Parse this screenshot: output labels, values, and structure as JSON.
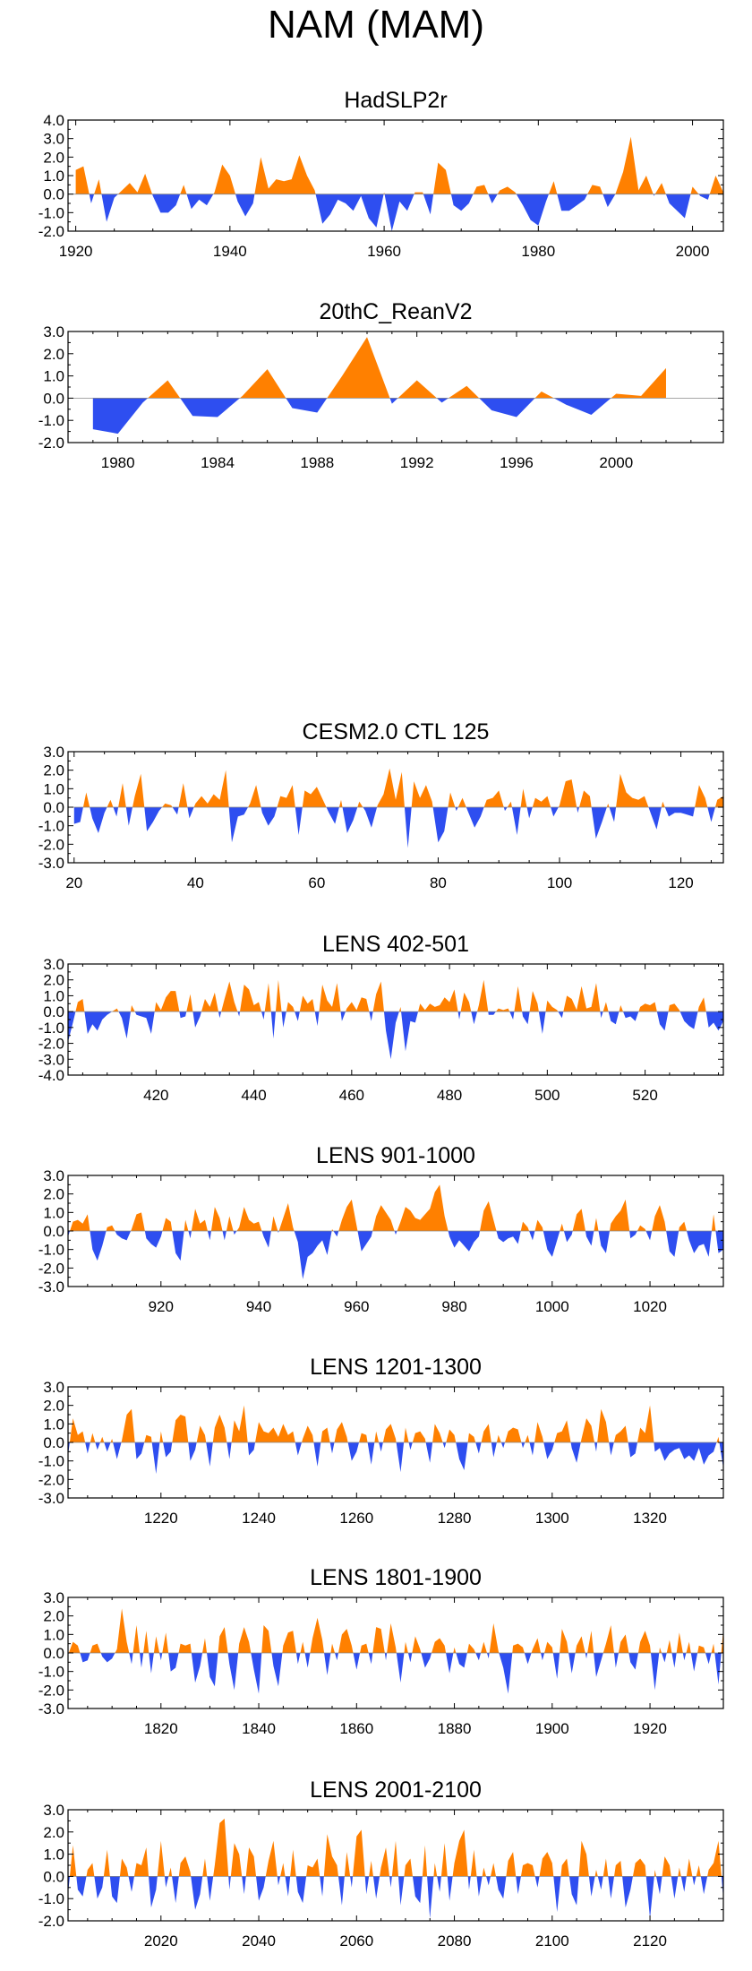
{
  "figure_title": "NAM (MAM)",
  "colors": {
    "positive": "#ff8000",
    "negative": "#2e4ef0",
    "axis": "#000000"
  },
  "chart_data": [
    {
      "type": "area",
      "title": "HadSLP2r",
      "x_start": 1920,
      "x_end": 2004,
      "xlim": [
        1919,
        2004
      ],
      "xticks": [
        1920,
        1940,
        1960,
        1980,
        2000
      ],
      "ylim": [
        -2.0,
        4.0
      ],
      "yticks": [
        "4.0",
        "3.0",
        "2.0",
        "1.0",
        "0.0",
        "-1.0",
        "-2.0"
      ],
      "values": [
        1.3,
        1.5,
        -0.5,
        0.8,
        -1.5,
        -0.2,
        0.2,
        0.6,
        0.1,
        1.1,
        -0.1,
        -1.0,
        -1.0,
        -0.6,
        0.5,
        -0.8,
        -0.3,
        -0.6,
        0.1,
        1.6,
        1.0,
        -0.4,
        -1.2,
        -0.5,
        2.0,
        0.3,
        0.8,
        0.7,
        0.8,
        2.1,
        1.0,
        0.2,
        -1.6,
        -1.1,
        -0.3,
        -0.5,
        -0.9,
        -0.1,
        -1.3,
        -1.8,
        0.1,
        -2.0,
        -0.4,
        -0.9,
        0.1,
        0.1,
        -1.1,
        1.7,
        1.3,
        -0.6,
        -0.9,
        -0.5,
        0.4,
        0.5,
        -0.5,
        0.2,
        0.4,
        0.1,
        -0.6,
        -1.4,
        -1.7,
        -0.4,
        0.7,
        -0.9,
        -0.9,
        -0.6,
        -0.3,
        0.5,
        0.4,
        -0.7,
        0.0,
        1.2,
        3.1,
        0.2,
        1.0,
        -0.1,
        0.6,
        -0.5,
        -0.9,
        -1.3,
        0.4,
        -0.1,
        -0.3,
        1.0,
        0.1
      ]
    },
    {
      "type": "area",
      "title": "20thC_ReanV2",
      "x_start": 1979,
      "x_end": 2002,
      "xlim": [
        1978,
        2004.3
      ],
      "xticks": [
        1980,
        1984,
        1988,
        1992,
        1996,
        2000
      ],
      "ylim": [
        -2.0,
        3.0
      ],
      "yticks": [
        "3.0",
        "2.0",
        "1.0",
        "0.0",
        "-1.0",
        "-2.0"
      ],
      "values": [
        -1.4,
        -1.6,
        -0.2,
        0.8,
        -0.8,
        -0.85,
        0.1,
        1.3,
        -0.45,
        -0.65,
        1.0,
        2.75,
        -0.25,
        0.8,
        -0.2,
        0.55,
        -0.55,
        -0.85,
        0.3,
        -0.3,
        -0.75,
        0.2,
        0.1,
        1.35
      ]
    },
    {
      "type": "area",
      "title": "CESM2.0 CTL 125",
      "x_start": 20,
      "x_end": 127,
      "xlim": [
        19,
        127
      ],
      "xticks": [
        20,
        40,
        60,
        80,
        100,
        120
      ],
      "ylim": [
        -3.0,
        3.0
      ],
      "yticks": [
        "3.0",
        "2.0",
        "1.0",
        "0.0",
        "-1.0",
        "-2.0",
        "-3.0"
      ],
      "values": [
        -0.9,
        -0.8,
        0.8,
        -0.6,
        -1.4,
        -0.3,
        0.4,
        -0.5,
        1.3,
        -1.0,
        0.6,
        1.8,
        -1.3,
        -0.8,
        -0.2,
        0.2,
        0.1,
        -0.4,
        1.3,
        -0.6,
        0.2,
        0.6,
        0.2,
        0.7,
        0.4,
        2.0,
        -1.9,
        -0.5,
        -0.4,
        0.2,
        1.2,
        -0.3,
        -1.0,
        -0.5,
        0.6,
        0.5,
        1.2,
        -1.5,
        0.9,
        0.7,
        1.1,
        0.4,
        -0.3,
        -0.9,
        0.4,
        -1.4,
        -0.7,
        0.3,
        -0.2,
        -1.1,
        0.1,
        0.7,
        2.1,
        0.4,
        1.9,
        -2.2,
        1.4,
        0.5,
        1.2,
        0.3,
        -1.9,
        -1.3,
        0.8,
        -0.2,
        0.5,
        -0.3,
        -1.1,
        -0.5,
        0.4,
        0.5,
        0.9,
        -0.2,
        0.3,
        -1.5,
        1.0,
        -0.6,
        0.5,
        0.3,
        0.6,
        -0.5,
        0.1,
        1.4,
        1.5,
        -0.3,
        0.9,
        0.6,
        -1.7,
        -0.8,
        0.2,
        -0.8,
        1.8,
        0.8,
        0.5,
        0.4,
        0.6,
        -0.3,
        -1.2,
        0.3,
        -0.5,
        -0.3,
        -0.3,
        -0.4,
        -0.5,
        1.2,
        0.5,
        -0.8,
        0.4,
        0.6,
        -0.9
      ]
    },
    {
      "type": "area",
      "title": "LENS 402-501",
      "x_start": 402,
      "x_end": 536,
      "xlim": [
        402,
        536
      ],
      "xticks": [
        420,
        440,
        460,
        480,
        500,
        520
      ],
      "ylim": [
        -4.0,
        3.0
      ],
      "yticks": [
        "3.0",
        "2.0",
        "1.0",
        "0.0",
        "-1.0",
        "-2.0",
        "-3.0",
        "-4.0"
      ],
      "values": [
        -1.9,
        -0.7,
        0.6,
        0.8,
        -1.4,
        -0.8,
        -1.2,
        -0.5,
        -0.2,
        0.0,
        0.2,
        -0.4,
        -1.7,
        0.4,
        -0.2,
        -0.3,
        -0.4,
        -1.4,
        0.6,
        0.1,
        0.9,
        1.3,
        1.3,
        -0.4,
        -0.3,
        1.1,
        -1.0,
        -0.3,
        0.8,
        0.3,
        1.2,
        -0.4,
        0.8,
        1.9,
        0.6,
        -0.3,
        1.7,
        1.4,
        0.4,
        0.6,
        -0.5,
        1.8,
        -1.7,
        2.0,
        -1.0,
        0.6,
        0.3,
        -0.6,
        1.0,
        0.5,
        0.8,
        -0.9,
        1.7,
        0.7,
        0.3,
        1.8,
        -0.6,
        0.2,
        0.6,
        0.1,
        0.9,
        0.8,
        -0.6,
        1.1,
        1.9,
        -1.2,
        -3.0,
        -0.7,
        0.3,
        -2.5,
        -0.6,
        -0.7,
        0.5,
        0.1,
        0.5,
        0.3,
        0.4,
        0.9,
        0.6,
        1.4,
        -0.5,
        1.2,
        0.6,
        -0.8,
        0.4,
        2.0,
        -0.2,
        -0.2,
        0.2,
        0.1,
        0.2,
        -0.5,
        1.6,
        -0.3,
        -0.8,
        1.3,
        0.5,
        -1.4,
        0.7,
        0.3,
        0.1,
        -0.4,
        1.0,
        0.8,
        0.1,
        1.6,
        0.2,
        0.3,
        1.8,
        -0.4,
        0.6,
        -0.6,
        -0.8,
        0.4,
        -0.4,
        -0.3,
        -0.6,
        0.3,
        0.5,
        0.4,
        0.6,
        -0.8,
        -1.2,
        0.4,
        0.5,
        0.1,
        -0.6,
        -0.9,
        -1.1,
        0.3,
        0.9,
        -1.0,
        -0.7,
        -1.2,
        -0.6
      ]
    },
    {
      "type": "area",
      "title": "LENS 901-1000",
      "x_start": 901,
      "x_end": 1035,
      "xlim": [
        901,
        1035
      ],
      "xticks": [
        920,
        940,
        960,
        980,
        1000,
        1020
      ],
      "ylim": [
        -3.0,
        3.0
      ],
      "yticks": [
        "3.0",
        "2.0",
        "1.0",
        "0.0",
        "-1.0",
        "-2.0",
        "-3.0"
      ],
      "values": [
        -0.3,
        0.5,
        0.6,
        0.4,
        0.9,
        -1.0,
        -1.6,
        -0.8,
        0.2,
        0.3,
        -0.2,
        -0.4,
        -0.5,
        0.1,
        0.9,
        1.0,
        -0.4,
        -0.7,
        -0.9,
        -0.3,
        0.7,
        0.5,
        -1.2,
        -1.6,
        0.6,
        -0.4,
        1.2,
        0.4,
        0.6,
        -0.5,
        1.3,
        0.7,
        -0.5,
        0.8,
        -0.2,
        0.2,
        1.3,
        0.6,
        0.4,
        0.5,
        -0.3,
        -0.9,
        0.8,
        -0.1,
        0.7,
        1.5,
        0.2,
        -0.6,
        -2.6,
        -1.4,
        -1.2,
        -0.8,
        -0.5,
        -1.3,
        0.1,
        -0.3,
        0.6,
        1.3,
        1.7,
        0.3,
        -1.1,
        -0.7,
        -0.3,
        0.8,
        1.4,
        1.0,
        0.6,
        -0.2,
        0.5,
        1.3,
        1.1,
        0.7,
        0.6,
        0.9,
        1.2,
        2.1,
        2.5,
        0.8,
        -0.3,
        -0.9,
        -0.5,
        -0.8,
        -1.1,
        -0.6,
        -0.3,
        1.1,
        1.6,
        0.6,
        -0.4,
        -0.6,
        -0.4,
        -0.3,
        -0.7,
        0.5,
        0.2,
        -0.5,
        0.6,
        0.2,
        -1.0,
        -1.4,
        -0.5,
        0.4,
        -0.6,
        -0.2,
        0.9,
        1.2,
        -0.3,
        -0.8,
        0.7,
        -0.8,
        -1.2,
        0.4,
        0.8,
        1.1,
        1.7,
        -0.4,
        -0.2,
        0.3,
        0.1,
        -0.5,
        0.8,
        1.4,
        0.5,
        -1.1,
        -1.4,
        0.2,
        0.5,
        -0.5,
        -1.2,
        -0.8,
        -0.7,
        -1.4,
        0.9,
        -1.2,
        -1.0
      ]
    },
    {
      "type": "area",
      "title": "LENS 1201-1300",
      "x_start": 1201,
      "x_end": 1335,
      "xlim": [
        1201,
        1335
      ],
      "xticks": [
        1220,
        1240,
        1260,
        1280,
        1300,
        1320
      ],
      "ylim": [
        -3.0,
        3.0
      ],
      "yticks": [
        "3.0",
        "2.0",
        "1.0",
        "0.0",
        "-1.0",
        "-2.0",
        "-3.0"
      ],
      "values": [
        -0.7,
        1.3,
        0.4,
        0.6,
        -0.6,
        0.5,
        -0.4,
        0.3,
        -0.5,
        0.2,
        -0.9,
        0.1,
        1.5,
        1.8,
        -0.9,
        -0.6,
        0.4,
        0.3,
        -1.7,
        0.6,
        -0.8,
        -0.5,
        1.2,
        1.5,
        1.4,
        -1.0,
        -0.4,
        0.9,
        0.4,
        -1.3,
        0.8,
        1.5,
        0.8,
        -0.9,
        1.2,
        0.6,
        2.0,
        -0.7,
        -0.4,
        1.1,
        0.6,
        0.5,
        0.8,
        0.3,
        1.0,
        0.4,
        0.6,
        -0.7,
        0.2,
        0.9,
        0.4,
        -1.3,
        0.6,
        0.8,
        -0.6,
        0.7,
        1.1,
        0.3,
        -1.0,
        -0.5,
        0.5,
        0.4,
        -1.2,
        0.6,
        -0.5,
        0.7,
        1.0,
        0.2,
        -1.6,
        0.8,
        -0.4,
        0.5,
        0.6,
        0.2,
        -1.1,
        1.0,
        0.5,
        -0.3,
        0.7,
        0.4,
        -0.9,
        -1.5,
        0.5,
        0.3,
        -0.6,
        0.6,
        1.0,
        -0.8,
        0.4,
        -0.3,
        0.6,
        0.8,
        0.7,
        -0.3,
        0.4,
        -0.7,
        1.1,
        0.3,
        -0.9,
        -0.4,
        0.5,
        0.6,
        1.2,
        -0.3,
        -1.1,
        0.2,
        1.3,
        0.9,
        -0.5,
        1.8,
        1.1,
        -0.7,
        0.4,
        0.6,
        0.9,
        -0.8,
        -0.6,
        0.8,
        0.5,
        2.0,
        -0.5,
        -0.3,
        -1.0,
        -0.6,
        -0.4,
        -0.3,
        -0.9,
        -0.7,
        -1.0,
        -0.3,
        -1.2,
        -0.7,
        -0.5,
        0.3,
        -1.4
      ]
    },
    {
      "type": "area",
      "title": "LENS 1801-1900",
      "x_start": 1801,
      "x_end": 1935,
      "xlim": [
        1801,
        1935
      ],
      "xticks": [
        1820,
        1840,
        1860,
        1880,
        1900,
        1920
      ],
      "ylim": [
        -3.0,
        3.0
      ],
      "yticks": [
        "3.0",
        "2.0",
        "1.0",
        "0.0",
        "-1.0",
        "-2.0",
        "-3.0"
      ],
      "values": [
        -0.1,
        0.6,
        0.4,
        -0.5,
        -0.4,
        0.4,
        0.5,
        -0.2,
        -0.5,
        -0.3,
        0.2,
        2.4,
        0.6,
        -0.6,
        1.5,
        -0.8,
        1.2,
        -1.1,
        0.9,
        -0.4,
        1.1,
        -1.0,
        -0.8,
        0.5,
        0.4,
        0.5,
        -1.6,
        -0.7,
        0.8,
        -1.3,
        -1.8,
        0.9,
        1.4,
        -0.6,
        -2.0,
        0.5,
        1.4,
        0.6,
        -0.9,
        -2.2,
        1.5,
        1.2,
        -0.7,
        -1.8,
        0.4,
        1.1,
        1.2,
        -0.6,
        0.6,
        -0.8,
        0.8,
        1.9,
        0.7,
        -1.2,
        0.5,
        -0.4,
        1.0,
        1.3,
        0.4,
        -0.9,
        0.4,
        0.5,
        -0.6,
        1.4,
        1.3,
        -0.4,
        1.6,
        0.3,
        -1.6,
        0.6,
        -0.5,
        0.9,
        0.2,
        -0.8,
        -0.3,
        0.6,
        0.8,
        0.4,
        -1.1,
        0.3,
        -0.6,
        -0.8,
        0.5,
        0.2,
        -0.4,
        0.6,
        -0.3,
        1.6,
        0.1,
        -0.8,
        -2.2,
        0.4,
        0.5,
        0.3,
        -0.6,
        0.2,
        0.8,
        -0.4,
        0.6,
        0.3,
        -1.4,
        1.3,
        0.6,
        -1.1,
        0.4,
        0.9,
        -0.3,
        1.2,
        -1.3,
        -0.4,
        0.5,
        1.5,
        -0.8,
        0.6,
        1.0,
        -0.5,
        -0.9,
        0.6,
        1.2,
        0.4,
        -2.0,
        0.3,
        -0.5,
        0.7,
        -0.8,
        1.1,
        -0.4,
        0.6,
        -1.0,
        0.4,
        0.3,
        -0.6,
        0.5,
        -1.7,
        1.3
      ]
    },
    {
      "type": "area",
      "title": "LENS 2001-2100",
      "x_start": 2001,
      "x_end": 2135,
      "xlim": [
        2001,
        2135
      ],
      "xticks": [
        2020,
        2040,
        2060,
        2080,
        2100,
        2120
      ],
      "ylim": [
        -2.0,
        3.0
      ],
      "yticks": [
        "3.0",
        "2.0",
        "1.0",
        "0.0",
        "-1.0",
        "-2.0"
      ],
      "values": [
        -0.8,
        1.4,
        -0.6,
        -0.9,
        0.3,
        0.6,
        -1.0,
        -0.5,
        1.2,
        -0.9,
        -1.2,
        0.8,
        0.4,
        -0.7,
        0.6,
        0.5,
        1.3,
        -1.4,
        -0.6,
        1.6,
        -0.5,
        0.4,
        -1.2,
        0.6,
        0.9,
        0.2,
        -1.5,
        -0.8,
        0.8,
        -1.1,
        0.5,
        2.4,
        2.6,
        -0.6,
        1.5,
        1.0,
        -0.8,
        1.3,
        0.9,
        -1.1,
        -0.5,
        0.7,
        1.6,
        -0.4,
        0.6,
        -0.9,
        1.2,
        -0.7,
        -1.2,
        0.5,
        0.4,
        0.8,
        -0.9,
        1.9,
        0.9,
        0.5,
        -1.3,
        1.1,
        -0.5,
        1.8,
        2.1,
        -0.8,
        0.7,
        -1.0,
        0.4,
        1.3,
        -0.5,
        1.6,
        -1.3,
        0.5,
        0.8,
        -0.9,
        -1.2,
        1.4,
        -1.9,
        0.6,
        -0.7,
        1.5,
        -1.1,
        0.6,
        1.6,
        2.1,
        -0.6,
        1.2,
        -0.9,
        0.4,
        -0.4,
        0.6,
        -0.6,
        -1.0,
        0.7,
        1.1,
        -0.8,
        0.5,
        0.6,
        0.5,
        -0.5,
        0.8,
        1.1,
        0.6,
        -1.6,
        0.5,
        0.8,
        -0.8,
        -1.3,
        1.6,
        1.0,
        -0.9,
        0.3,
        -0.6,
        0.8,
        -1.0,
        0.5,
        0.7,
        -1.4,
        -0.6,
        0.6,
        0.8,
        0.5,
        -1.9,
        0.3,
        -0.8,
        0.9,
        0.5,
        -1.0,
        0.4,
        -0.7,
        0.8,
        -0.4,
        0.5,
        -0.8,
        0.3,
        0.6,
        1.6,
        -1.0
      ]
    }
  ]
}
